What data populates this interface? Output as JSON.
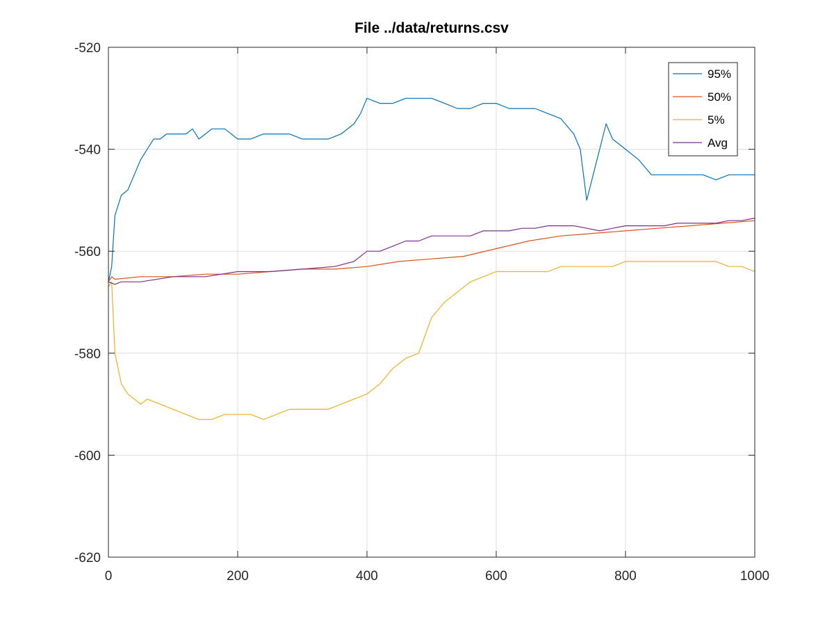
{
  "chart_data": {
    "type": "line",
    "title": "File ../data/returns.csv",
    "xlabel": "",
    "ylabel": "",
    "xlim": [
      0,
      1000
    ],
    "ylim": [
      -620,
      -520
    ],
    "xticks": [
      0,
      200,
      400,
      600,
      800,
      1000
    ],
    "xtick_labels": [
      "0",
      "200",
      "400",
      "600",
      "800",
      "1000"
    ],
    "yticks": [
      -620,
      -600,
      -580,
      -560,
      -540,
      -520
    ],
    "ytick_labels": [
      "-620",
      "-600",
      "-580",
      "-560",
      "-540",
      "-520"
    ],
    "grid": true,
    "legend_position": "top-right",
    "series": [
      {
        "name": "95%",
        "color": "#0072BD",
        "x": [
          0,
          5,
          10,
          20,
          30,
          40,
          50,
          60,
          70,
          80,
          90,
          100,
          110,
          120,
          130,
          140,
          150,
          160,
          180,
          200,
          220,
          240,
          260,
          280,
          300,
          320,
          340,
          360,
          380,
          390,
          400,
          420,
          440,
          460,
          480,
          500,
          520,
          540,
          560,
          580,
          600,
          620,
          640,
          660,
          680,
          700,
          720,
          730,
          740,
          750,
          760,
          770,
          780,
          800,
          820,
          840,
          860,
          880,
          900,
          920,
          940,
          960,
          980,
          1000
        ],
        "y": [
          -566,
          -563,
          -553,
          -549,
          -548,
          -545,
          -542,
          -540,
          -538,
          -538,
          -537,
          -537,
          -537,
          -537,
          -536,
          -538,
          -537,
          -536,
          -536,
          -538,
          -538,
          -537,
          -537,
          -537,
          -538,
          -538,
          -538,
          -537,
          -535,
          -533,
          -530,
          -531,
          -531,
          -530,
          -530,
          -530,
          -531,
          -532,
          -532,
          -531,
          -531,
          -532,
          -532,
          -532,
          -533,
          -534,
          -537,
          -540,
          -550,
          -545,
          -540,
          -535,
          -538,
          -540,
          -542,
          -545,
          -545,
          -545,
          -545,
          -545,
          -546,
          -545,
          -545,
          -545
        ]
      },
      {
        "name": "50%",
        "color": "#D95319",
        "x": [
          0,
          5,
          10,
          50,
          100,
          150,
          200,
          250,
          300,
          350,
          400,
          450,
          500,
          550,
          600,
          650,
          700,
          750,
          800,
          850,
          900,
          950,
          1000
        ],
        "y": [
          -566,
          -565,
          -565.5,
          -565,
          -565,
          -564.5,
          -564.5,
          -564,
          -563.5,
          -563.5,
          -563,
          -562,
          -561.5,
          -561,
          -559.5,
          -558,
          -557,
          -556.5,
          -556,
          -555.5,
          -555,
          -554.5,
          -554
        ]
      },
      {
        "name": "5%",
        "color": "#EDB120",
        "x": [
          0,
          5,
          10,
          20,
          30,
          40,
          50,
          60,
          80,
          100,
          120,
          140,
          160,
          180,
          200,
          220,
          240,
          260,
          280,
          300,
          320,
          340,
          360,
          380,
          400,
          420,
          440,
          460,
          480,
          500,
          520,
          540,
          560,
          580,
          600,
          620,
          640,
          660,
          680,
          700,
          720,
          740,
          760,
          780,
          800,
          820,
          840,
          860,
          880,
          900,
          920,
          940,
          960,
          980,
          1000
        ],
        "y": [
          -567,
          -566,
          -580,
          -586,
          -588,
          -589,
          -590,
          -589,
          -590,
          -591,
          -592,
          -593,
          -593,
          -592,
          -592,
          -592,
          -593,
          -592,
          -591,
          -591,
          -591,
          -591,
          -590,
          -589,
          -588,
          -586,
          -583,
          -581,
          -580,
          -573,
          -570,
          -568,
          -566,
          -565,
          -564,
          -564,
          -564,
          -564,
          -564,
          -563,
          -563,
          -563,
          -563,
          -563,
          -562,
          -562,
          -562,
          -562,
          -562,
          -562,
          -562,
          -562,
          -563,
          -563,
          -564
        ]
      },
      {
        "name": "Avg",
        "color": "#7E2F8E",
        "x": [
          0,
          10,
          20,
          50,
          100,
          150,
          200,
          250,
          300,
          350,
          380,
          400,
          420,
          440,
          460,
          480,
          500,
          520,
          540,
          560,
          580,
          600,
          620,
          640,
          660,
          680,
          700,
          720,
          740,
          760,
          780,
          800,
          820,
          840,
          860,
          880,
          900,
          920,
          940,
          960,
          980,
          1000
        ],
        "y": [
          -566,
          -566.5,
          -566,
          -566,
          -565,
          -565,
          -564,
          -564,
          -563.5,
          -563,
          -562,
          -560,
          -560,
          -559,
          -558,
          -558,
          -557,
          -557,
          -557,
          -557,
          -556,
          -556,
          -556,
          -555.5,
          -555.5,
          -555,
          -555,
          -555,
          -555.5,
          -556,
          -555.5,
          -555,
          -555,
          -555,
          -555,
          -554.5,
          -554.5,
          -554.5,
          -554.5,
          -554,
          -554,
          -553.5
        ]
      }
    ]
  }
}
